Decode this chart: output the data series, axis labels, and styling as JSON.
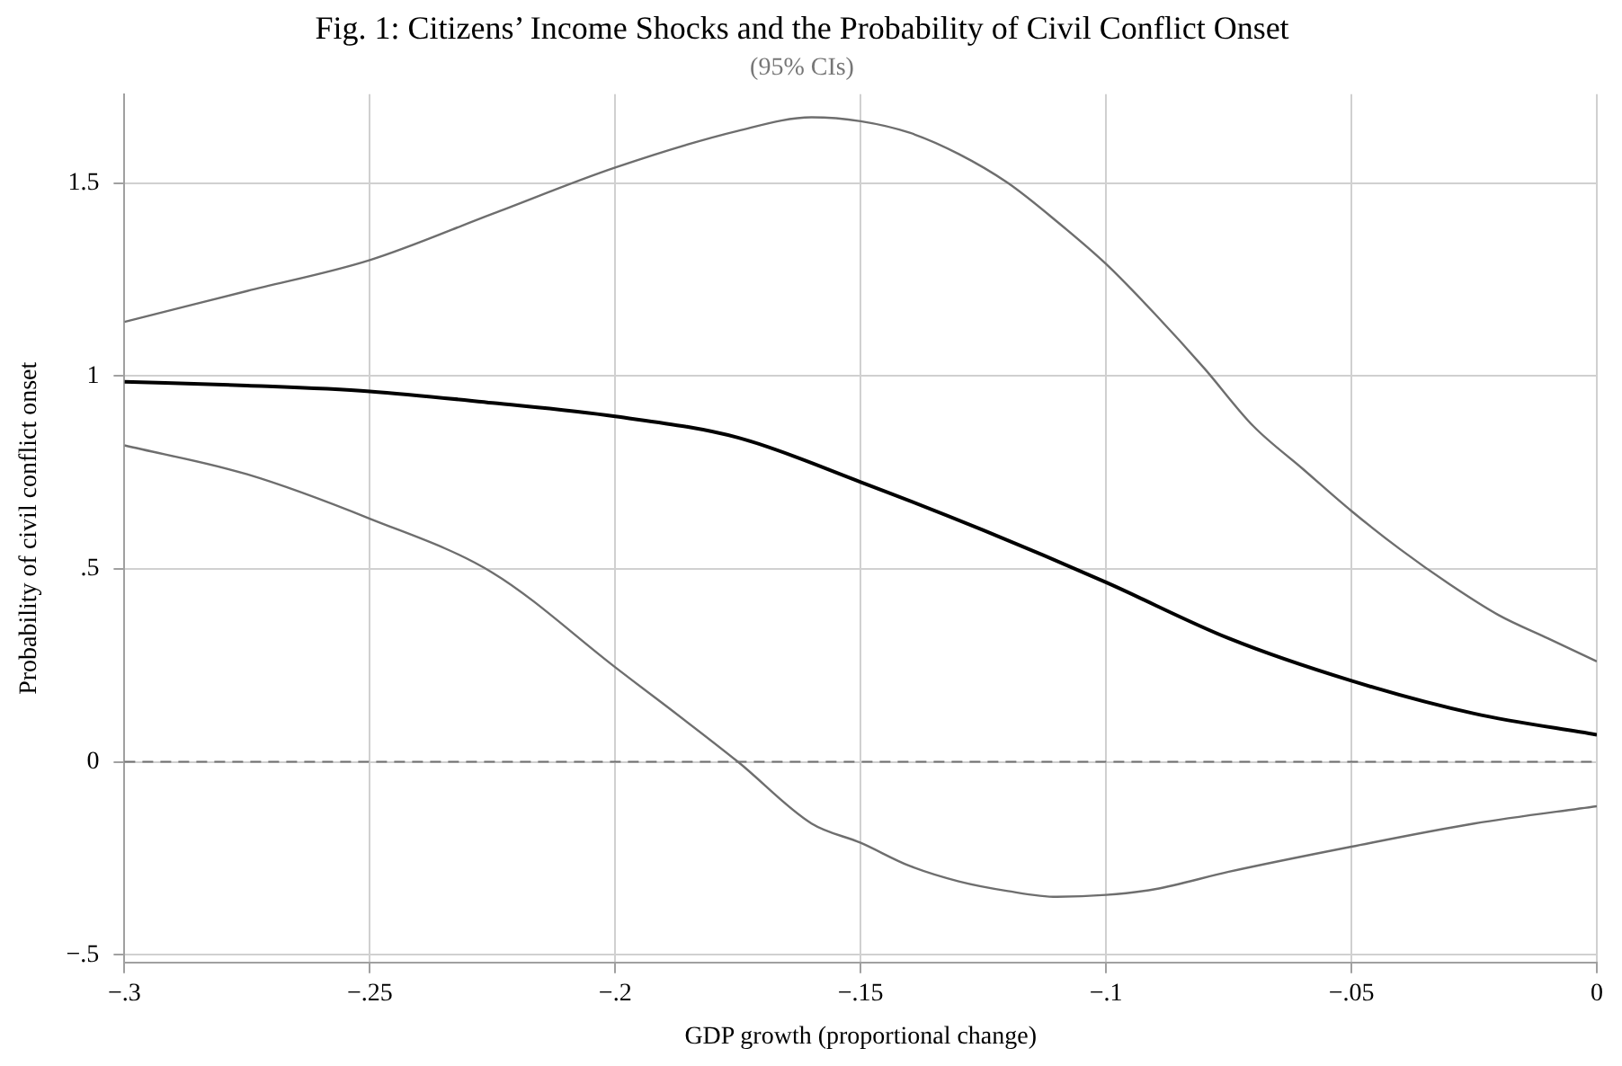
{
  "chart_data": {
    "type": "line",
    "title": "Fig. 1: Citizens’ Income Shocks and the Probability of Civil Conflict Onset",
    "subtitle": "(95% CIs)",
    "xlabel": "GDP growth (proportional change)",
    "ylabel": "Probability of civil conflict onset",
    "xlim": [
      -0.3,
      0
    ],
    "xticks": [
      {
        "value": -0.3,
        "label": "−.3"
      },
      {
        "value": -0.25,
        "label": "−.25"
      },
      {
        "value": -0.2,
        "label": "−.2"
      },
      {
        "value": -0.15,
        "label": "−.15"
      },
      {
        "value": -0.1,
        "label": "−.1"
      },
      {
        "value": -0.05,
        "label": "−.05"
      },
      {
        "value": 0,
        "label": "0"
      }
    ],
    "ylim": [
      -0.52,
      1.73
    ],
    "yticks": [
      {
        "value": -0.5,
        "label": "−.5"
      },
      {
        "value": 0,
        "label": "0"
      },
      {
        "value": 0.5,
        "label": ".5"
      },
      {
        "value": 1,
        "label": "1"
      },
      {
        "value": 1.5,
        "label": "1.5"
      }
    ],
    "grid": true,
    "legend": false,
    "marker": "none",
    "ref_lines": [
      {
        "axis": "y",
        "value": 0,
        "color": "#707070",
        "line_style": "dashed"
      }
    ],
    "series": [
      {
        "color": "#6e6e6e",
        "x": [
          -0.3,
          -0.275,
          -0.25,
          -0.225,
          -0.2,
          -0.175,
          -0.16,
          -0.15,
          -0.14,
          -0.13,
          -0.12,
          -0.11,
          -0.1,
          -0.09,
          -0.08,
          -0.07,
          -0.06,
          -0.05,
          -0.04,
          -0.03,
          -0.02,
          -0.01,
          0
        ],
        "values": [
          1.14,
          1.22,
          1.3,
          1.42,
          1.54,
          1.635,
          1.67,
          1.66,
          1.63,
          1.575,
          1.5,
          1.4,
          1.29,
          1.16,
          1.02,
          0.87,
          0.76,
          0.65,
          0.55,
          0.46,
          0.38,
          0.32,
          0.26
        ]
      },
      {
        "color": "#000000",
        "x": [
          -0.3,
          -0.275,
          -0.25,
          -0.225,
          -0.2,
          -0.175,
          -0.15,
          -0.125,
          -0.1,
          -0.075,
          -0.05,
          -0.025,
          0
        ],
        "values": [
          0.985,
          0.975,
          0.96,
          0.93,
          0.895,
          0.84,
          0.725,
          0.6,
          0.465,
          0.32,
          0.21,
          0.125,
          0.07
        ]
      },
      {
        "color": "#6e6e6e",
        "x": [
          -0.3,
          -0.275,
          -0.25,
          -0.225,
          -0.2,
          -0.175,
          -0.16,
          -0.15,
          -0.14,
          -0.13,
          -0.12,
          -0.11,
          -0.1,
          -0.09,
          -0.075,
          -0.05,
          -0.025,
          0
        ],
        "values": [
          0.82,
          0.745,
          0.63,
          0.49,
          0.245,
          0.0,
          -0.16,
          -0.21,
          -0.27,
          -0.31,
          -0.335,
          -0.35,
          -0.345,
          -0.33,
          -0.285,
          -0.22,
          -0.16,
          -0.115
        ]
      }
    ]
  }
}
